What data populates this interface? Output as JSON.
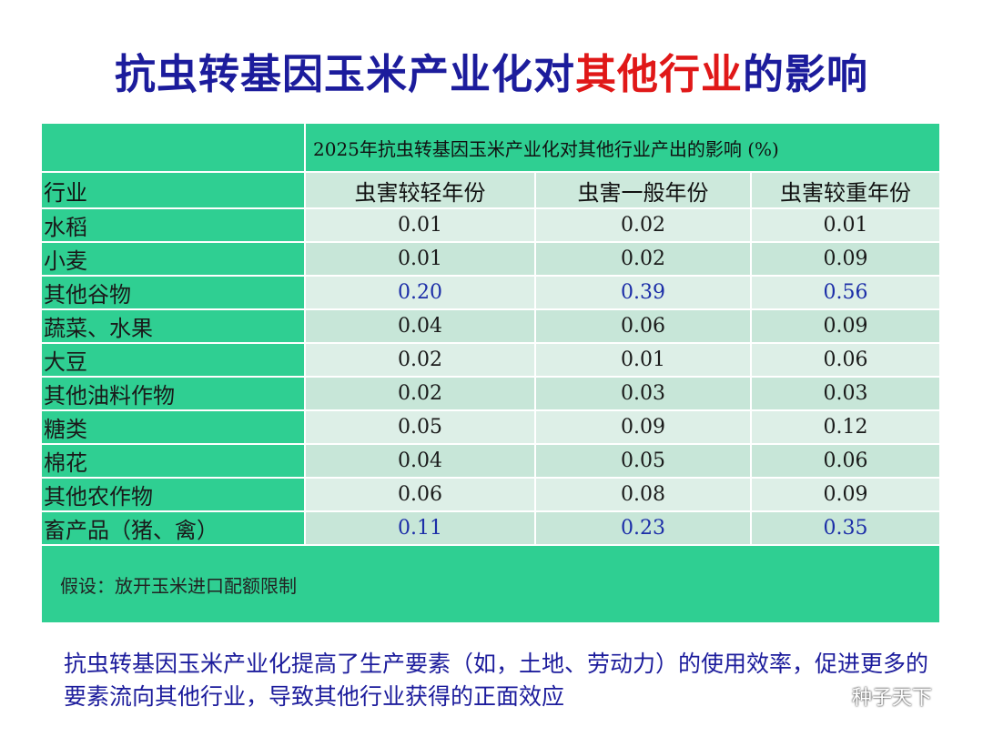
{
  "title": {
    "part1": "抗虫转基因玉米产业化对",
    "highlight": "其他行业",
    "part2": "的影响"
  },
  "table": {
    "caption": "2025年抗虫转基因玉米产业化对其他行业产出的影响 (%)",
    "index_header": "行业",
    "headers": [
      "虫害较轻年份",
      "虫害一般年份",
      "虫害较重年份"
    ],
    "rows": [
      {
        "name": "水稻",
        "values": [
          "0.01",
          "0.02",
          "0.01"
        ]
      },
      {
        "name": "小麦",
        "values": [
          "0.01",
          "0.02",
          "0.09"
        ]
      },
      {
        "name": "其他谷物",
        "values": [
          "0.20",
          "0.39",
          "0.56"
        ]
      },
      {
        "name": "蔬菜、水果",
        "values": [
          "0.04",
          "0.06",
          "0.09"
        ]
      },
      {
        "name": "大豆",
        "values": [
          "0.02",
          "0.01",
          "0.06"
        ]
      },
      {
        "name": "其他油料作物",
        "values": [
          "0.02",
          "0.03",
          "0.03"
        ]
      },
      {
        "name": "糖类",
        "values": [
          "0.05",
          "0.09",
          "0.12"
        ]
      },
      {
        "name": "棉花",
        "values": [
          "0.04",
          "0.05",
          "0.06"
        ]
      },
      {
        "name": "其他农作物",
        "values": [
          "0.06",
          "0.08",
          "0.09"
        ]
      },
      {
        "name": "畜产品（猪、禽）",
        "values": [
          "0.11",
          "0.23",
          "0.35"
        ]
      }
    ],
    "note": "假设：放开玉米进口配额限制"
  },
  "conclusion": "抗虫转基因玉米产业化提高了生产要素（如，土地、劳动力）的使用效率，促进更多的要素流向其他行业，导致其他行业获得的正面效应",
  "watermark": "种子天下",
  "colors": {
    "title": "#1c1c9c",
    "highlight": "#e01818",
    "header_green": "#2fcf92",
    "highlight_value": "#1c2ea8"
  }
}
